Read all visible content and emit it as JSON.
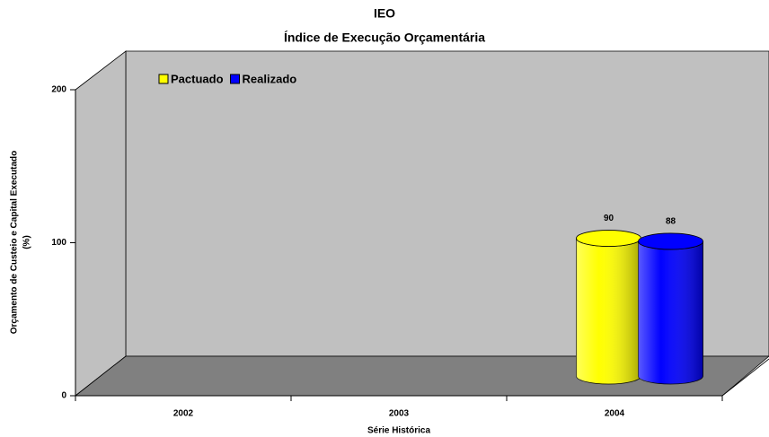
{
  "chart_data": {
    "type": "bar3d",
    "title": "IEO",
    "subtitle": "Índice de Execução Orçamentária",
    "y_label": [
      "Orçamento de Custeio e Capital Executado",
      "(%)"
    ],
    "x_label": "Série Histórica",
    "categories": [
      "2002",
      "2003",
      "2004"
    ],
    "series": [
      {
        "name": "Pactuado",
        "color": "#ffff00",
        "values": [
          null,
          null,
          90
        ]
      },
      {
        "name": "Realizado",
        "color": "#0000ff",
        "values": [
          null,
          null,
          88
        ]
      }
    ],
    "ylim": [
      0,
      200
    ],
    "yticks": [
      0,
      100,
      200
    ],
    "legend": "top-left"
  }
}
